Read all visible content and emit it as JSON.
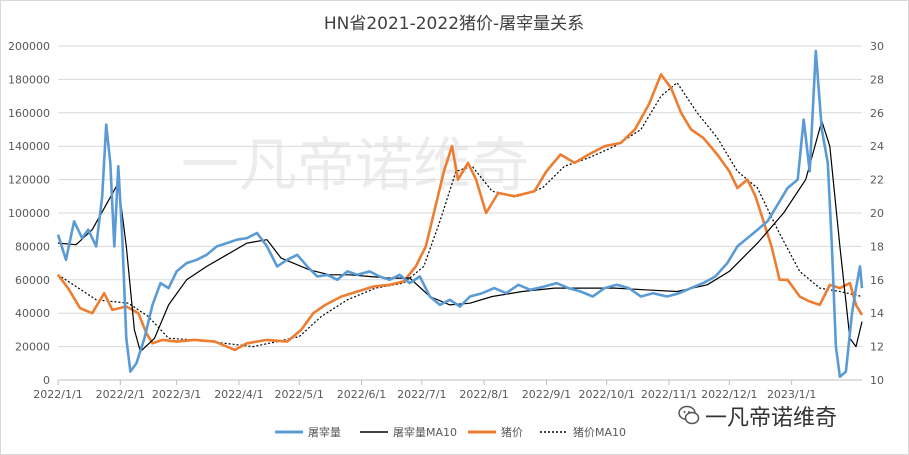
{
  "chart_data": {
    "type": "line",
    "title": "HN省2021-2022猪价-屠宰量关系",
    "watermark_text": "一凡帝诺维奇",
    "left_axis": {
      "min": 0,
      "max": 200000,
      "ticks": [
        "0",
        "20000",
        "40000",
        "60000",
        "80000",
        "100000",
        "120000",
        "140000",
        "160000",
        "180000",
        "200000"
      ]
    },
    "right_axis": {
      "min": 10,
      "max": 30,
      "ticks": [
        "10",
        "12",
        "14",
        "16",
        "18",
        "20",
        "22",
        "24",
        "26",
        "28",
        "30"
      ]
    },
    "x_range": [
      "2022-01-01",
      "2023-02-05"
    ],
    "x_ticks": [
      "2022/1/1",
      "2022/2/1",
      "2022/3/1",
      "2022/4/1",
      "2022/5/1",
      "2022/6/1",
      "2022/7/1",
      "2022/8/1",
      "2022/9/1",
      "2022/10/1",
      "2022/11/1",
      "2022/12/1",
      "2023/1/1"
    ],
    "grid": true,
    "legend_position": "bottom",
    "colors": {
      "slaughter": "#5b9bd5",
      "slaughter_ma": "#000000",
      "price": "#ed7d31",
      "price_ma": "#000000"
    },
    "series": [
      {
        "name": "屠宰量",
        "axis": "left",
        "style": "solid",
        "color": "#5b9bd5",
        "points": [
          [
            "2022-01-01",
            87000
          ],
          [
            "2022-01-05",
            72000
          ],
          [
            "2022-01-09",
            95000
          ],
          [
            "2022-01-13",
            85000
          ],
          [
            "2022-01-16",
            90000
          ],
          [
            "2022-01-20",
            80000
          ],
          [
            "2022-01-23",
            110000
          ],
          [
            "2022-01-25",
            153000
          ],
          [
            "2022-01-27",
            130000
          ],
          [
            "2022-01-29",
            80000
          ],
          [
            "2022-01-31",
            128000
          ],
          [
            "2022-02-02",
            85000
          ],
          [
            "2022-02-04",
            25000
          ],
          [
            "2022-02-06",
            5000
          ],
          [
            "2022-02-09",
            10000
          ],
          [
            "2022-02-13",
            25000
          ],
          [
            "2022-02-17",
            45000
          ],
          [
            "2022-02-21",
            58000
          ],
          [
            "2022-02-25",
            55000
          ],
          [
            "2022-03-01",
            65000
          ],
          [
            "2022-03-06",
            70000
          ],
          [
            "2022-03-11",
            72000
          ],
          [
            "2022-03-16",
            75000
          ],
          [
            "2022-03-21",
            80000
          ],
          [
            "2022-03-26",
            82000
          ],
          [
            "2022-03-31",
            84000
          ],
          [
            "2022-04-05",
            85000
          ],
          [
            "2022-04-10",
            88000
          ],
          [
            "2022-04-15",
            80000
          ],
          [
            "2022-04-20",
            68000
          ],
          [
            "2022-04-25",
            72000
          ],
          [
            "2022-04-30",
            75000
          ],
          [
            "2022-05-05",
            68000
          ],
          [
            "2022-05-10",
            62000
          ],
          [
            "2022-05-15",
            63000
          ],
          [
            "2022-05-20",
            60000
          ],
          [
            "2022-05-25",
            65000
          ],
          [
            "2022-05-30",
            63000
          ],
          [
            "2022-06-05",
            65000
          ],
          [
            "2022-06-10",
            62000
          ],
          [
            "2022-06-15",
            60000
          ],
          [
            "2022-06-20",
            63000
          ],
          [
            "2022-06-25",
            58000
          ],
          [
            "2022-06-30",
            62000
          ],
          [
            "2022-07-05",
            50000
          ],
          [
            "2022-07-10",
            45000
          ],
          [
            "2022-07-15",
            48000
          ],
          [
            "2022-07-20",
            44000
          ],
          [
            "2022-07-25",
            50000
          ],
          [
            "2022-07-31",
            52000
          ],
          [
            "2022-08-06",
            55000
          ],
          [
            "2022-08-12",
            52000
          ],
          [
            "2022-08-18",
            57000
          ],
          [
            "2022-08-24",
            54000
          ],
          [
            "2022-08-31",
            56000
          ],
          [
            "2022-09-06",
            58000
          ],
          [
            "2022-09-12",
            55000
          ],
          [
            "2022-09-18",
            53000
          ],
          [
            "2022-09-24",
            50000
          ],
          [
            "2022-09-30",
            55000
          ],
          [
            "2022-10-06",
            57000
          ],
          [
            "2022-10-12",
            55000
          ],
          [
            "2022-10-18",
            50000
          ],
          [
            "2022-10-24",
            52000
          ],
          [
            "2022-10-31",
            50000
          ],
          [
            "2022-11-06",
            52000
          ],
          [
            "2022-11-12",
            55000
          ],
          [
            "2022-11-18",
            58000
          ],
          [
            "2022-11-24",
            62000
          ],
          [
            "2022-11-30",
            70000
          ],
          [
            "2022-12-05",
            80000
          ],
          [
            "2022-12-10",
            85000
          ],
          [
            "2022-12-15",
            90000
          ],
          [
            "2022-12-20",
            95000
          ],
          [
            "2022-12-25",
            105000
          ],
          [
            "2022-12-30",
            115000
          ],
          [
            "2023-01-04",
            120000
          ],
          [
            "2023-01-07",
            156000
          ],
          [
            "2023-01-10",
            125000
          ],
          [
            "2023-01-13",
            197000
          ],
          [
            "2023-01-16",
            150000
          ],
          [
            "2023-01-19",
            130000
          ],
          [
            "2023-01-21",
            80000
          ],
          [
            "2023-01-23",
            20000
          ],
          [
            "2023-01-25",
            2000
          ],
          [
            "2023-01-28",
            5000
          ],
          [
            "2023-01-31",
            40000
          ],
          [
            "2023-02-02",
            55000
          ],
          [
            "2023-02-04",
            68000
          ],
          [
            "2023-02-05",
            55000
          ]
        ]
      },
      {
        "name": "屠宰量MA10",
        "axis": "left",
        "style": "solid",
        "color": "#000000",
        "points": [
          [
            "2022-01-01",
            82000
          ],
          [
            "2022-01-10",
            81000
          ],
          [
            "2022-01-18",
            90000
          ],
          [
            "2022-01-25",
            105000
          ],
          [
            "2022-01-31",
            118000
          ],
          [
            "2022-02-04",
            80000
          ],
          [
            "2022-02-08",
            30000
          ],
          [
            "2022-02-11",
            17000
          ],
          [
            "2022-02-18",
            25000
          ],
          [
            "2022-02-25",
            45000
          ],
          [
            "2022-03-06",
            60000
          ],
          [
            "2022-03-16",
            68000
          ],
          [
            "2022-03-26",
            75000
          ],
          [
            "2022-04-05",
            82000
          ],
          [
            "2022-04-15",
            84000
          ],
          [
            "2022-04-22",
            73000
          ],
          [
            "2022-04-28",
            70000
          ],
          [
            "2022-05-06",
            66000
          ],
          [
            "2022-05-16",
            63000
          ],
          [
            "2022-05-26",
            63000
          ],
          [
            "2022-06-05",
            62000
          ],
          [
            "2022-06-15",
            61000
          ],
          [
            "2022-06-25",
            61000
          ],
          [
            "2022-07-05",
            50000
          ],
          [
            "2022-07-15",
            45000
          ],
          [
            "2022-07-25",
            46000
          ],
          [
            "2022-08-05",
            50000
          ],
          [
            "2022-08-20",
            53000
          ],
          [
            "2022-09-05",
            55000
          ],
          [
            "2022-09-20",
            55000
          ],
          [
            "2022-10-05",
            55000
          ],
          [
            "2022-10-20",
            54000
          ],
          [
            "2022-11-05",
            53000
          ],
          [
            "2022-11-20",
            57000
          ],
          [
            "2022-12-01",
            65000
          ],
          [
            "2022-12-15",
            82000
          ],
          [
            "2022-12-28",
            100000
          ],
          [
            "2023-01-08",
            120000
          ],
          [
            "2023-01-16",
            155000
          ],
          [
            "2023-01-20",
            140000
          ],
          [
            "2023-01-25",
            80000
          ],
          [
            "2023-01-30",
            25000
          ],
          [
            "2023-02-02",
            20000
          ],
          [
            "2023-02-05",
            35000
          ]
        ]
      },
      {
        "name": "猪价",
        "axis": "right",
        "style": "solid",
        "color": "#ed7d31",
        "points": [
          [
            "2022-01-01",
            16.3
          ],
          [
            "2022-01-06",
            15.5
          ],
          [
            "2022-01-12",
            14.3
          ],
          [
            "2022-01-18",
            14.0
          ],
          [
            "2022-01-24",
            15.2
          ],
          [
            "2022-01-28",
            14.2
          ],
          [
            "2022-02-04",
            14.4
          ],
          [
            "2022-02-10",
            14.0
          ],
          [
            "2022-02-14",
            12.8
          ],
          [
            "2022-02-17",
            12.2
          ],
          [
            "2022-02-22",
            12.4
          ],
          [
            "2022-03-01",
            12.3
          ],
          [
            "2022-03-10",
            12.4
          ],
          [
            "2022-03-20",
            12.3
          ],
          [
            "2022-03-30",
            11.8
          ],
          [
            "2022-04-05",
            12.2
          ],
          [
            "2022-04-15",
            12.4
          ],
          [
            "2022-04-25",
            12.3
          ],
          [
            "2022-05-02",
            13.0
          ],
          [
            "2022-05-08",
            14.0
          ],
          [
            "2022-05-14",
            14.5
          ],
          [
            "2022-05-22",
            15.0
          ],
          [
            "2022-05-30",
            15.3
          ],
          [
            "2022-06-07",
            15.6
          ],
          [
            "2022-06-15",
            15.7
          ],
          [
            "2022-06-22",
            15.9
          ],
          [
            "2022-06-28",
            16.8
          ],
          [
            "2022-07-03",
            18.0
          ],
          [
            "2022-07-07",
            20.0
          ],
          [
            "2022-07-12",
            22.5
          ],
          [
            "2022-07-16",
            24.0
          ],
          [
            "2022-07-19",
            22.0
          ],
          [
            "2022-07-24",
            23.0
          ],
          [
            "2022-07-28",
            22.0
          ],
          [
            "2022-08-02",
            20.0
          ],
          [
            "2022-08-08",
            21.2
          ],
          [
            "2022-08-16",
            21.0
          ],
          [
            "2022-08-26",
            21.3
          ],
          [
            "2022-09-01",
            22.5
          ],
          [
            "2022-09-08",
            23.5
          ],
          [
            "2022-09-15",
            23.0
          ],
          [
            "2022-09-22",
            23.5
          ],
          [
            "2022-09-30",
            24.0
          ],
          [
            "2022-10-08",
            24.2
          ],
          [
            "2022-10-15",
            25.0
          ],
          [
            "2022-10-22",
            26.5
          ],
          [
            "2022-10-28",
            28.3
          ],
          [
            "2022-11-02",
            27.5
          ],
          [
            "2022-11-07",
            26.0
          ],
          [
            "2022-11-12",
            25.0
          ],
          [
            "2022-11-18",
            24.5
          ],
          [
            "2022-11-25",
            23.5
          ],
          [
            "2022-12-01",
            22.5
          ],
          [
            "2022-12-05",
            21.5
          ],
          [
            "2022-12-10",
            22.0
          ],
          [
            "2022-12-14",
            21.0
          ],
          [
            "2022-12-18",
            19.5
          ],
          [
            "2022-12-22",
            18.0
          ],
          [
            "2022-12-26",
            16.0
          ],
          [
            "2022-12-30",
            16.0
          ],
          [
            "2023-01-05",
            15.0
          ],
          [
            "2023-01-10",
            14.7
          ],
          [
            "2023-01-15",
            14.5
          ],
          [
            "2023-01-20",
            15.7
          ],
          [
            "2023-01-25",
            15.5
          ],
          [
            "2023-01-30",
            15.8
          ],
          [
            "2023-02-02",
            14.5
          ],
          [
            "2023-02-05",
            13.9
          ]
        ]
      },
      {
        "name": "猪价MA10",
        "axis": "right",
        "style": "dotted",
        "color": "#000000",
        "points": [
          [
            "2022-01-01",
            16.3
          ],
          [
            "2022-01-10",
            15.6
          ],
          [
            "2022-01-20",
            14.8
          ],
          [
            "2022-01-28",
            14.7
          ],
          [
            "2022-02-05",
            14.6
          ],
          [
            "2022-02-15",
            13.8
          ],
          [
            "2022-02-25",
            12.5
          ],
          [
            "2022-03-10",
            12.4
          ],
          [
            "2022-03-25",
            12.2
          ],
          [
            "2022-04-08",
            12.0
          ],
          [
            "2022-04-20",
            12.3
          ],
          [
            "2022-05-01",
            12.6
          ],
          [
            "2022-05-12",
            13.8
          ],
          [
            "2022-05-25",
            14.8
          ],
          [
            "2022-06-08",
            15.5
          ],
          [
            "2022-06-22",
            15.8
          ],
          [
            "2022-07-02",
            16.8
          ],
          [
            "2022-07-10",
            19.5
          ],
          [
            "2022-07-18",
            22.5
          ],
          [
            "2022-07-26",
            22.8
          ],
          [
            "2022-08-05",
            21.3
          ],
          [
            "2022-08-18",
            21.0
          ],
          [
            "2022-08-30",
            21.5
          ],
          [
            "2022-09-10",
            22.8
          ],
          [
            "2022-09-22",
            23.3
          ],
          [
            "2022-10-05",
            24.0
          ],
          [
            "2022-10-18",
            25.0
          ],
          [
            "2022-10-28",
            27.0
          ],
          [
            "2022-11-05",
            27.8
          ],
          [
            "2022-11-15",
            26.0
          ],
          [
            "2022-11-25",
            24.5
          ],
          [
            "2022-12-05",
            22.5
          ],
          [
            "2022-12-15",
            21.5
          ],
          [
            "2022-12-25",
            19.0
          ],
          [
            "2023-01-05",
            16.5
          ],
          [
            "2023-01-15",
            15.5
          ],
          [
            "2023-01-25",
            15.3
          ],
          [
            "2023-02-05",
            15.0
          ]
        ]
      }
    ]
  }
}
